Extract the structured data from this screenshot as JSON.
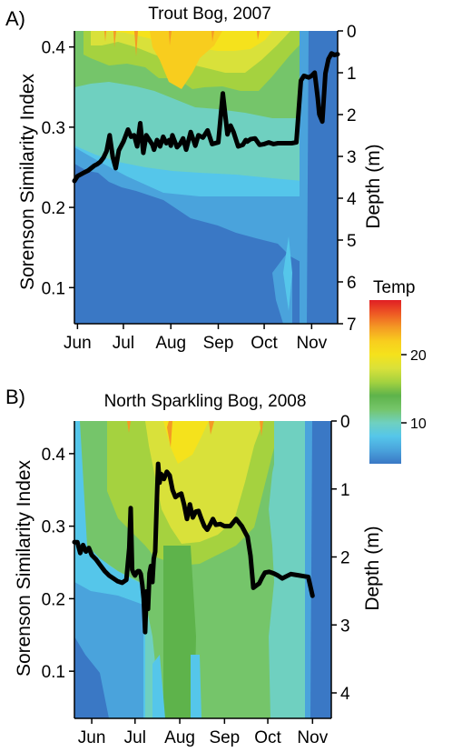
{
  "colors": {
    "temp_ramp": [
      "#3a78c5",
      "#4aa3dc",
      "#55c6ea",
      "#6fd0c0",
      "#75c56a",
      "#5eb34b",
      "#a5d23f",
      "#d9e13a",
      "#f5e21c",
      "#f8cd1e",
      "#f49a24",
      "#ee5a24",
      "#e01e24"
    ],
    "line": "#000000"
  },
  "legend": {
    "title": "Temp",
    "ticks": [
      "20",
      "10"
    ],
    "tick_values": [
      20,
      10
    ],
    "range": [
      4,
      28
    ]
  },
  "chart_data": [
    {
      "type": "line",
      "panel_letter": "A)",
      "title": "Trout Bog, 2007",
      "xlabel": "",
      "ylabel": "Sorenson Similarity Index",
      "ylabel_right": "Depth (m)",
      "x_tick_labels": [
        "Jun",
        "Jul",
        "Aug",
        "Sep",
        "Oct",
        "Nov"
      ],
      "x_tick_values": [
        152,
        182,
        213,
        244,
        274,
        305
      ],
      "xlim": [
        150,
        322
      ],
      "ylim": [
        0.055,
        0.42
      ],
      "y_ticks": [
        0.1,
        0.2,
        0.3,
        0.4
      ],
      "y_tick_labels": [
        "0.1",
        "0.2",
        "0.3",
        "0.4"
      ],
      "depth_range": [
        0,
        7
      ],
      "depth_ticks": [
        "0",
        "1",
        "2",
        "3",
        "4",
        "5",
        "6",
        "7"
      ],
      "depth_tick_values": [
        0,
        1,
        2,
        3,
        4,
        5,
        6,
        7
      ],
      "background": "contour of water temperature by depth and date",
      "series": [
        {
          "x": [
            150,
            152,
            156,
            159,
            161,
            163,
            165,
            167,
            169,
            171,
            173,
            175,
            177,
            179,
            182,
            185,
            187,
            189,
            191,
            193,
            195,
            197,
            199,
            201,
            202,
            204,
            206,
            208,
            210,
            212,
            213,
            214,
            215,
            217,
            219,
            221,
            223,
            226,
            229,
            231,
            234,
            237,
            240,
            244,
            247,
            250,
            252,
            254,
            257,
            260,
            262,
            263,
            265,
            268,
            271,
            274,
            277,
            280,
            283,
            286,
            289,
            292,
            295,
            298,
            300,
            303,
            305,
            307,
            309,
            310,
            312,
            314,
            316,
            318,
            320,
            322
          ],
          "y": [
            0.233,
            0.239,
            0.243,
            0.246,
            0.249,
            0.252,
            0.254,
            0.257,
            0.262,
            0.27,
            0.29,
            0.263,
            0.249,
            0.271,
            0.282,
            0.297,
            0.288,
            0.29,
            0.276,
            0.305,
            0.268,
            0.29,
            0.284,
            0.278,
            0.272,
            0.284,
            0.276,
            0.288,
            0.28,
            0.284,
            0.277,
            0.29,
            0.285,
            0.275,
            0.279,
            0.286,
            0.272,
            0.294,
            0.277,
            0.29,
            0.287,
            0.296,
            0.279,
            0.281,
            0.342,
            0.291,
            0.302,
            0.294,
            0.276,
            0.278,
            0.284,
            0.282,
            0.285,
            0.286,
            0.278,
            0.279,
            0.281,
            0.279,
            0.28,
            0.28,
            0.28,
            0.28,
            0.281,
            0.358,
            0.364,
            0.362,
            0.364,
            0.368,
            0.336,
            0.316,
            0.307,
            0.367,
            0.385,
            0.392,
            0.39,
            0.391
          ]
        }
      ]
    },
    {
      "type": "line",
      "panel_letter": "B)",
      "title": "North Sparkling Bog, 2008",
      "xlabel": "",
      "ylabel": "Sorenson Similarity Index",
      "ylabel_right": "Depth (m)",
      "x_tick_labels": [
        "Jun",
        "Jul",
        "Aug",
        "Sep",
        "Oct",
        "Nov"
      ],
      "x_tick_values": [
        152,
        182,
        213,
        244,
        274,
        305
      ],
      "xlim": [
        140,
        318
      ],
      "ylim": [
        0.035,
        0.445
      ],
      "y_ticks": [
        0.1,
        0.2,
        0.3,
        0.4
      ],
      "y_tick_labels": [
        "0.1",
        "0.2",
        "0.3",
        "0.4"
      ],
      "depth_range": [
        0,
        4.5
      ],
      "depth_ticks": [
        "0",
        "1",
        "2",
        "3",
        "4"
      ],
      "depth_tick_values": [
        0,
        1,
        2,
        3,
        4
      ],
      "background": "contour of water temperature by depth and date",
      "series": [
        {
          "x": [
            140,
            142,
            144,
            146,
            148,
            150,
            152,
            155,
            158,
            161,
            164,
            167,
            170,
            173,
            176,
            178,
            179,
            180,
            181,
            182,
            183,
            184,
            185,
            186,
            187,
            188,
            189,
            190,
            191,
            192,
            193,
            194,
            195,
            196,
            197,
            198,
            199,
            200,
            202,
            204,
            206,
            208,
            210,
            212,
            214,
            216,
            218,
            220,
            222,
            224,
            226,
            228,
            230,
            232,
            234,
            236,
            238,
            241,
            244,
            248,
            252,
            256,
            260,
            262,
            264,
            266,
            268,
            270,
            272,
            275,
            278,
            281,
            284,
            287,
            290,
            293,
            296,
            299,
            302,
            305
          ],
          "y": [
            0.278,
            0.278,
            0.263,
            0.274,
            0.265,
            0.27,
            0.26,
            0.254,
            0.246,
            0.238,
            0.232,
            0.228,
            0.224,
            0.222,
            0.226,
            0.27,
            0.325,
            0.24,
            0.235,
            0.232,
            0.236,
            0.238,
            0.238,
            0.234,
            0.22,
            0.2,
            0.154,
            0.21,
            0.186,
            0.235,
            0.245,
            0.223,
            0.255,
            0.265,
            0.328,
            0.386,
            0.36,
            0.372,
            0.365,
            0.375,
            0.37,
            0.35,
            0.34,
            0.343,
            0.345,
            0.33,
            0.31,
            0.33,
            0.312,
            0.32,
            0.321,
            0.31,
            0.3,
            0.295,
            0.302,
            0.31,
            0.302,
            0.303,
            0.3,
            0.3,
            0.31,
            0.3,
            0.285,
            0.259,
            0.215,
            0.218,
            0.221,
            0.229,
            0.236,
            0.237,
            0.235,
            0.232,
            0.228,
            0.231,
            0.234,
            0.233,
            0.232,
            0.231,
            0.23,
            0.204
          ]
        }
      ]
    }
  ]
}
